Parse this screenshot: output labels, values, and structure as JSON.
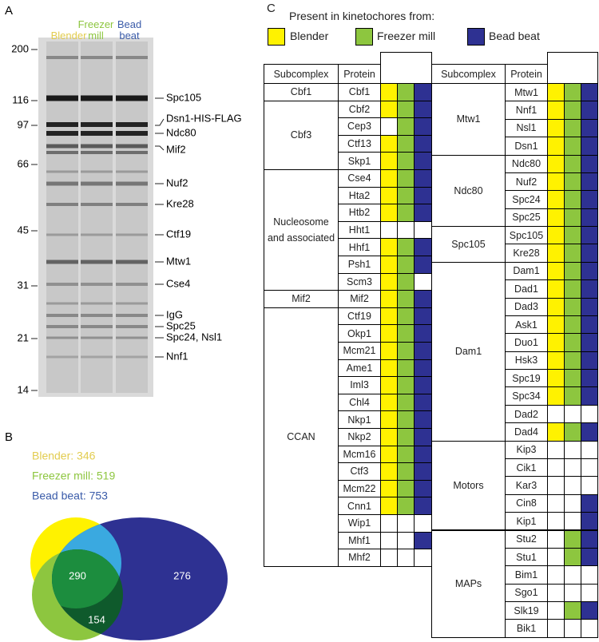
{
  "panel_a": {
    "label": "A",
    "lanes": [
      {
        "name": "Blender",
        "color": "#e2cc4f"
      },
      {
        "name": "Freezer mill",
        "color": "#8dc63f"
      },
      {
        "name": "Bead beat",
        "color": "#3a5ba9"
      }
    ],
    "markers": [
      200,
      116,
      97,
      66,
      45,
      31,
      21,
      14
    ],
    "bands": [
      "Spc105",
      "Dsn1-HIS-FLAG",
      "Ndc80",
      "Mif2",
      "Nuf2",
      "Kre28",
      "Ctf19",
      "Mtw1",
      "Cse4",
      "IgG",
      "Spc25",
      "Spc24, Nsl1",
      "Nnf1"
    ]
  },
  "panel_b": {
    "label": "B",
    "sets": [
      {
        "label": "Blender: 346",
        "color": "#e2cc4f"
      },
      {
        "label": "Freezer mill: 519",
        "color": "#8dc63f"
      },
      {
        "label": "Bead beat: 753",
        "color": "#3a5ba9"
      }
    ],
    "regions": [
      290,
      276,
      154
    ]
  },
  "panel_c": {
    "label": "C",
    "legend_title": "Present in kinetochores from:",
    "legend": [
      {
        "name": "Blender",
        "color": "#fff200"
      },
      {
        "name": "Freezer mill",
        "color": "#8dc63f"
      },
      {
        "name": "Bead beat",
        "color": "#2e3192"
      }
    ],
    "headers": [
      "Subcomplex",
      "Protein"
    ],
    "tables": [
      {
        "groups": [
          {
            "name": "Cbf1",
            "rows": [
              {
                "protein": "Cbf1",
                "present": [
                  true,
                  true,
                  true
                ]
              }
            ]
          },
          {
            "name": "Cbf3",
            "rows": [
              {
                "protein": "Cbf2",
                "present": [
                  true,
                  true,
                  true
                ]
              },
              {
                "protein": "Cep3",
                "present": [
                  false,
                  true,
                  true
                ]
              },
              {
                "protein": "Ctf13",
                "present": [
                  true,
                  true,
                  true
                ]
              },
              {
                "protein": "Skp1",
                "present": [
                  true,
                  true,
                  true
                ]
              }
            ]
          },
          {
            "name": "Nucleosome and associated",
            "rows": [
              {
                "protein": "Cse4",
                "present": [
                  true,
                  true,
                  true
                ]
              },
              {
                "protein": "Hta2",
                "present": [
                  true,
                  true,
                  true
                ]
              },
              {
                "protein": "Htb2",
                "present": [
                  true,
                  true,
                  true
                ]
              },
              {
                "protein": "Hht1",
                "present": [
                  false,
                  false,
                  false
                ]
              },
              {
                "protein": "Hhf1",
                "present": [
                  true,
                  true,
                  true
                ]
              },
              {
                "protein": "Psh1",
                "present": [
                  true,
                  true,
                  true
                ]
              },
              {
                "protein": "Scm3",
                "present": [
                  true,
                  true,
                  false
                ]
              }
            ]
          },
          {
            "name": "Mif2",
            "rows": [
              {
                "protein": "Mif2",
                "present": [
                  true,
                  true,
                  true
                ]
              }
            ]
          },
          {
            "name": "CCAN",
            "rows": [
              {
                "protein": "Ctf19",
                "present": [
                  true,
                  true,
                  true
                ]
              },
              {
                "protein": "Okp1",
                "present": [
                  true,
                  true,
                  true
                ]
              },
              {
                "protein": "Mcm21",
                "present": [
                  true,
                  true,
                  true
                ]
              },
              {
                "protein": "Ame1",
                "present": [
                  true,
                  true,
                  true
                ]
              },
              {
                "protein": "Iml3",
                "present": [
                  true,
                  true,
                  true
                ]
              },
              {
                "protein": "Chl4",
                "present": [
                  true,
                  true,
                  true
                ]
              },
              {
                "protein": "Nkp1",
                "present": [
                  true,
                  true,
                  true
                ]
              },
              {
                "protein": "Nkp2",
                "present": [
                  true,
                  true,
                  true
                ]
              },
              {
                "protein": "Mcm16",
                "present": [
                  true,
                  true,
                  true
                ]
              },
              {
                "protein": "Ctf3",
                "present": [
                  true,
                  true,
                  true
                ]
              },
              {
                "protein": "Mcm22",
                "present": [
                  true,
                  true,
                  true
                ]
              },
              {
                "protein": "Cnn1",
                "present": [
                  true,
                  true,
                  true
                ]
              },
              {
                "protein": "Wip1",
                "present": [
                  false,
                  false,
                  false
                ]
              },
              {
                "protein": "Mhf1",
                "present": [
                  false,
                  false,
                  true
                ]
              },
              {
                "protein": "Mhf2",
                "present": [
                  false,
                  false,
                  false
                ]
              }
            ]
          }
        ]
      },
      {
        "groups": [
          {
            "name": "Mtw1",
            "rows": [
              {
                "protein": "Mtw1",
                "present": [
                  true,
                  true,
                  true
                ]
              },
              {
                "protein": "Nnf1",
                "present": [
                  true,
                  true,
                  true
                ]
              },
              {
                "protein": "Nsl1",
                "present": [
                  true,
                  true,
                  true
                ]
              },
              {
                "protein": "Dsn1",
                "present": [
                  true,
                  true,
                  true
                ]
              }
            ]
          },
          {
            "name": "Ndc80",
            "rows": [
              {
                "protein": "Ndc80",
                "present": [
                  true,
                  true,
                  true
                ]
              },
              {
                "protein": "Nuf2",
                "present": [
                  true,
                  true,
                  true
                ]
              },
              {
                "protein": "Spc24",
                "present": [
                  true,
                  true,
                  true
                ]
              },
              {
                "protein": "Spc25",
                "present": [
                  true,
                  true,
                  true
                ]
              }
            ]
          },
          {
            "name": "Spc105",
            "rows": [
              {
                "protein": "Spc105",
                "present": [
                  true,
                  true,
                  true
                ]
              },
              {
                "protein": "Kre28",
                "present": [
                  true,
                  true,
                  true
                ]
              }
            ]
          },
          {
            "name": "Dam1",
            "rows": [
              {
                "protein": "Dam1",
                "present": [
                  true,
                  true,
                  true
                ]
              },
              {
                "protein": "Dad1",
                "present": [
                  true,
                  true,
                  true
                ]
              },
              {
                "protein": "Dad3",
                "present": [
                  true,
                  true,
                  true
                ]
              },
              {
                "protein": "Ask1",
                "present": [
                  true,
                  true,
                  true
                ]
              },
              {
                "protein": "Duo1",
                "present": [
                  true,
                  true,
                  true
                ]
              },
              {
                "protein": "Hsk3",
                "present": [
                  true,
                  true,
                  true
                ]
              },
              {
                "protein": "Spc19",
                "present": [
                  true,
                  true,
                  true
                ]
              },
              {
                "protein": "Spc34",
                "present": [
                  true,
                  true,
                  true
                ]
              },
              {
                "protein": "Dad2",
                "present": [
                  false,
                  false,
                  false
                ]
              },
              {
                "protein": "Dad4",
                "present": [
                  true,
                  true,
                  true
                ]
              }
            ]
          },
          {
            "name": "Motors",
            "rows": [
              {
                "protein": "Kip3",
                "present": [
                  false,
                  false,
                  false
                ]
              },
              {
                "protein": "Cik1",
                "present": [
                  false,
                  false,
                  false
                ]
              },
              {
                "protein": "Kar3",
                "present": [
                  false,
                  false,
                  false
                ]
              },
              {
                "protein": "Cin8",
                "present": [
                  false,
                  false,
                  true
                ]
              },
              {
                "protein": "Kip1",
                "present": [
                  false,
                  false,
                  true
                ]
              }
            ]
          },
          {
            "name": "MAPs",
            "rows": [
              {
                "protein": "Stu2",
                "present": [
                  false,
                  true,
                  true
                ]
              },
              {
                "protein": "Stu1",
                "present": [
                  false,
                  true,
                  true
                ]
              },
              {
                "protein": "Bim1",
                "present": [
                  false,
                  false,
                  false
                ]
              },
              {
                "protein": "Sgo1",
                "present": [
                  false,
                  false,
                  false
                ]
              },
              {
                "protein": "Slk19",
                "present": [
                  false,
                  true,
                  true
                ]
              },
              {
                "protein": "Bik1",
                "present": [
                  false,
                  false,
                  false
                ]
              }
            ]
          }
        ]
      }
    ]
  }
}
